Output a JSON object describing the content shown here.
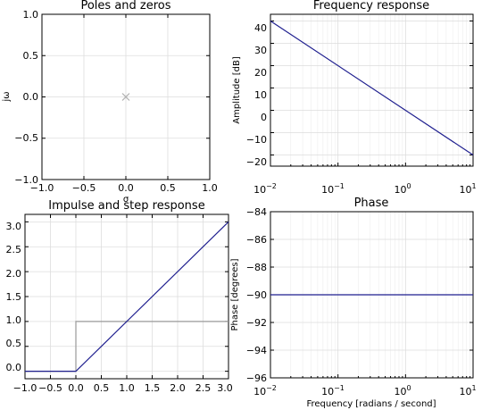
{
  "chart_data": [
    {
      "id": "pz",
      "type": "scatter",
      "title": "Poles and zeros",
      "xlabel": "σ",
      "ylabel": "jω",
      "xlim": [
        -1.0,
        1.0
      ],
      "ylim": [
        -1.0,
        1.0
      ],
      "xticks": [
        "−1.0",
        "−0.5",
        "0.0",
        "0.5",
        "1.0"
      ],
      "yticks": [
        "1.0",
        "0.5",
        "0.0",
        "−0.5",
        "−1.0"
      ],
      "grid": true,
      "points": [
        {
          "x": 0.0,
          "y": 0.0,
          "marker": "x"
        }
      ]
    },
    {
      "id": "freq",
      "type": "line",
      "title": "Frequency response",
      "xlabel": "",
      "ylabel": "Amplitude [dB]",
      "xscale": "log",
      "xlim": [
        0.01,
        10
      ],
      "ylim": [
        -25,
        43
      ],
      "xticks": [
        "10",
        "10",
        "10",
        "10"
      ],
      "xtick_exponents": [
        "−2",
        "−1",
        "0",
        "1"
      ],
      "yticks": [
        "40",
        "30",
        "20",
        "10",
        "0",
        "−10",
        "−20"
      ],
      "grid": true,
      "series": [
        {
          "x": [
            0.01,
            10
          ],
          "y": [
            40,
            -20
          ]
        }
      ]
    },
    {
      "id": "step",
      "type": "line",
      "title": "Impulse and step response",
      "xlabel": "",
      "ylabel": "",
      "xlim": [
        -1.0,
        3.0
      ],
      "ylim": [
        -0.15,
        3.15
      ],
      "xticks": [
        "−1.0",
        "−0.5",
        "0.0",
        "0.5",
        "1.0",
        "1.5",
        "2.0",
        "2.5",
        "3.0"
      ],
      "yticks": [
        "3.0",
        "2.5",
        "2.0",
        "1.5",
        "1.0",
        "0.5",
        "0.0"
      ],
      "grid": true,
      "series": [
        {
          "x": [
            -1.0,
            0.0,
            3.0
          ],
          "y": [
            0.0,
            0.0,
            3.0
          ]
        },
        {
          "x": [
            -1.0,
            0.0,
            0.0,
            3.0
          ],
          "y": [
            0.0,
            0.0,
            1.0,
            1.0
          ]
        }
      ]
    },
    {
      "id": "phase",
      "type": "line",
      "title": "Phase",
      "xlabel": "Frequency [radians / second]",
      "ylabel": "Phase [degrees]",
      "xscale": "log",
      "xlim": [
        0.01,
        10
      ],
      "ylim": [
        -96,
        -84
      ],
      "xticks": [
        "10",
        "10",
        "10",
        "10"
      ],
      "xtick_exponents": [
        "−2",
        "−1",
        "0",
        "1"
      ],
      "yticks": [
        "−84",
        "−86",
        "−88",
        "−90",
        "−92",
        "−94",
        "−96"
      ],
      "grid": true,
      "series": [
        {
          "x": [
            0.01,
            10
          ],
          "y": [
            -90,
            -90
          ]
        }
      ]
    }
  ],
  "colors": {
    "line": "#1f1f8f",
    "step": "#9a9a9a",
    "marker": "#b0b0b0"
  }
}
